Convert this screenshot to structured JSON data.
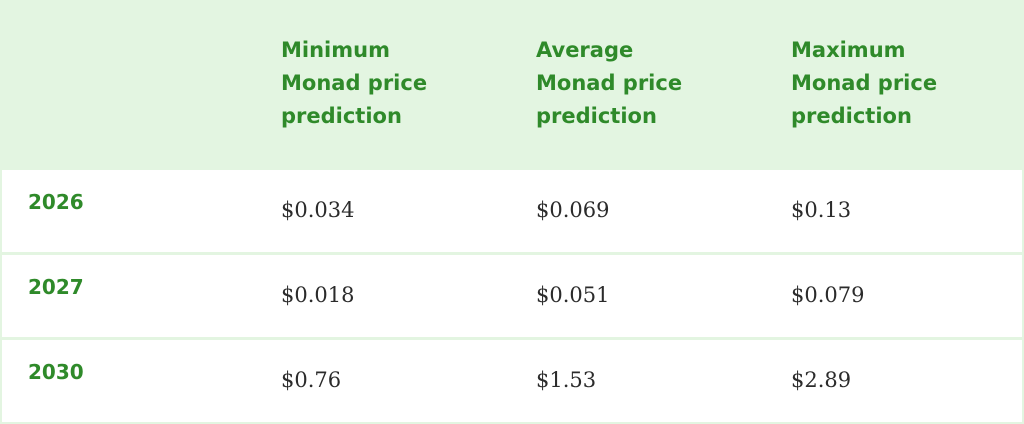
{
  "table": {
    "header": [
      "Minimum Monad price prediction",
      "Average Monad price prediction",
      "Maximum Monad price prediction"
    ],
    "rows": [
      [
        "2026",
        "$0.034",
        "$0.069",
        "$0.13"
      ],
      [
        "2027",
        "$0.018",
        "$0.051",
        "$0.079"
      ],
      [
        "2030",
        "$0.76",
        "$1.53",
        "$2.89"
      ]
    ]
  }
}
